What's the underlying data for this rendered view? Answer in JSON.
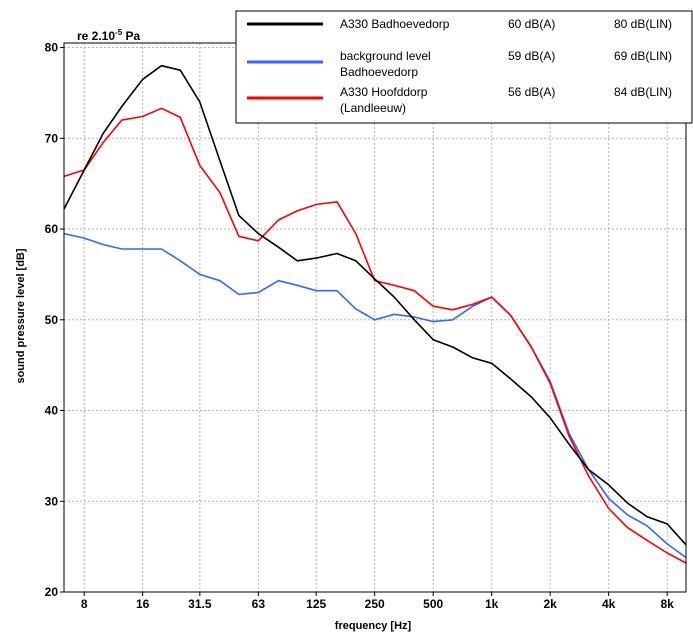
{
  "chart_data": {
    "type": "line",
    "reference": {
      "base": "re 2.10",
      "exp": "-5",
      "unit": " Pa"
    },
    "xlabel": "frequency [Hz]",
    "ylabel": "sound pressure level [dB]",
    "x_tick_labels": [
      "8",
      "16",
      "31.5",
      "63",
      "125",
      "250",
      "500",
      "1k",
      "2k",
      "4k",
      "8k"
    ],
    "y_ticks": [
      20,
      30,
      40,
      50,
      60,
      70,
      80
    ],
    "ylim": [
      20,
      80.5
    ],
    "x_scale": "log",
    "grid": true,
    "legend_position": "top-right",
    "x": [
      6.3,
      8,
      10,
      12.5,
      16,
      20,
      25,
      31.5,
      40,
      50,
      63,
      80,
      100,
      125,
      160,
      200,
      250,
      315,
      400,
      500,
      630,
      800,
      1000,
      1250,
      1600,
      2000,
      2500,
      3150,
      4000,
      5000,
      6300,
      8000,
      10000
    ],
    "series": [
      {
        "name": "A330 Badhoevedorp",
        "legend_lines": [
          "A330 Badhoevedorp"
        ],
        "dba": "60 dB(A)",
        "dblin": "80 dB(LIN)",
        "color": "#000000",
        "values": [
          62.2,
          66.5,
          70.5,
          73.5,
          76.5,
          78,
          77.5,
          74,
          67.5,
          61.5,
          59.5,
          58,
          56.5,
          56.8,
          57.3,
          56.5,
          54.5,
          52.5,
          50,
          47.8,
          47,
          45.8,
          45.2,
          43.5,
          41.5,
          39.2,
          36.3,
          33.5,
          31.8,
          29.8,
          28.3,
          27.5,
          25.2
        ]
      },
      {
        "name": "background level Badhoevedorp",
        "legend_lines": [
          "background level",
          "Badhoevedorp"
        ],
        "dba": "59 dB(A)",
        "dblin": "69 dB(LIN)",
        "color": "#3366ff",
        "values": [
          59.5,
          59,
          58.3,
          57.8,
          57.8,
          57.8,
          56.5,
          55,
          54.3,
          52.8,
          53,
          54.3,
          53.8,
          53.2,
          53.2,
          51.2,
          50,
          50.6,
          50.3,
          49.8,
          50,
          51.5,
          52.5,
          50.5,
          47,
          43.2,
          37.5,
          33.5,
          30.3,
          28.5,
          27.3,
          25.3,
          23.8
        ]
      },
      {
        "name": "A330 Hoofddorp (Landleeuw)",
        "legend_lines": [
          "A330 Hoofddorp",
          "(Landleeuw)"
        ],
        "dba": "56 dB(A)",
        "dblin": "84 dB(LIN)",
        "color": "#ff0000",
        "values": [
          65.8,
          66.5,
          69.5,
          72,
          72.4,
          73.3,
          72.3,
          67,
          64,
          59.2,
          58.7,
          61,
          62,
          62.7,
          63,
          59.5,
          54.3,
          53.8,
          53.2,
          51.5,
          51.1,
          51.7,
          52.5,
          50.5,
          47,
          43,
          37.2,
          32.8,
          29.2,
          27.1,
          25.7,
          24.3,
          23.2
        ]
      }
    ]
  }
}
